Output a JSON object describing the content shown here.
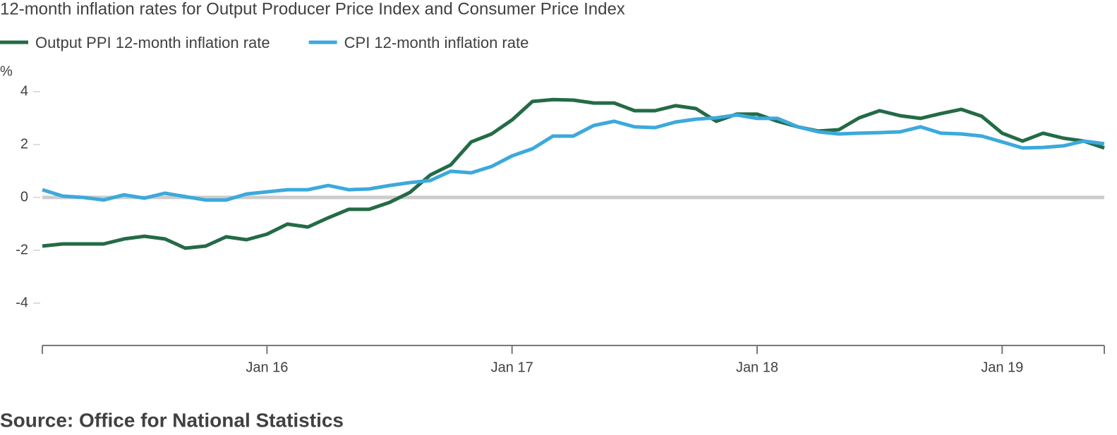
{
  "chart_data": {
    "type": "line",
    "title": "12-month inflation rates for Output Producer Price Index and Consumer Price Index",
    "y_label": "%",
    "source": "Source: Office for National Statistics",
    "categories": [
      null,
      null,
      null,
      null,
      null,
      null,
      null,
      null,
      null,
      null,
      null,
      "Jan 16",
      null,
      null,
      null,
      null,
      null,
      null,
      null,
      null,
      null,
      null,
      null,
      "Jan 17",
      null,
      null,
      null,
      null,
      null,
      null,
      null,
      null,
      null,
      null,
      null,
      "Jan 18",
      null,
      null,
      null,
      null,
      null,
      null,
      null,
      null,
      null,
      null,
      null,
      "Jan 19",
      null,
      null,
      null,
      null,
      null
    ],
    "series": [
      {
        "name": "Output PPI 12-month inflation rate",
        "color": "#236b46",
        "values": [
          -1.84,
          -1.76,
          -1.76,
          -1.76,
          -1.57,
          -1.47,
          -1.57,
          -1.92,
          -1.84,
          -1.49,
          -1.6,
          -1.39,
          -1.01,
          -1.12,
          -0.77,
          -0.45,
          -0.45,
          -0.19,
          0.19,
          0.85,
          1.23,
          2.1,
          2.4,
          2.93,
          3.63,
          3.7,
          3.68,
          3.57,
          3.57,
          3.28,
          3.28,
          3.47,
          3.36,
          2.88,
          3.15,
          3.15,
          2.88,
          2.67,
          2.51,
          2.56,
          3.01,
          3.28,
          3.09,
          2.99,
          3.17,
          3.33,
          3.07,
          2.43,
          2.13,
          2.43,
          2.24,
          2.13,
          1.87
        ]
      },
      {
        "name": "CPI 12-month inflation rate",
        "color": "#3ca9dc",
        "values": [
          0.29,
          0.05,
          0,
          -0.1,
          0.1,
          -0.03,
          0.16,
          0.03,
          -0.1,
          -0.1,
          0.13,
          0.21,
          0.29,
          0.29,
          0.45,
          0.29,
          0.32,
          0.45,
          0.56,
          0.64,
          0.99,
          0.93,
          1.17,
          1.57,
          1.84,
          2.32,
          2.32,
          2.72,
          2.88,
          2.67,
          2.64,
          2.85,
          2.96,
          3.01,
          3.12,
          2.99,
          2.99,
          2.67,
          2.48,
          2.4,
          2.43,
          2.45,
          2.48,
          2.67,
          2.43,
          2.4,
          2.32,
          2.1,
          1.87,
          1.89,
          1.95,
          2.13,
          2.03
        ]
      }
    ],
    "ylim": [
      -5.6,
      4.8
    ],
    "yticks": [
      -4,
      -2,
      0,
      2,
      4
    ],
    "zero_line": true
  }
}
